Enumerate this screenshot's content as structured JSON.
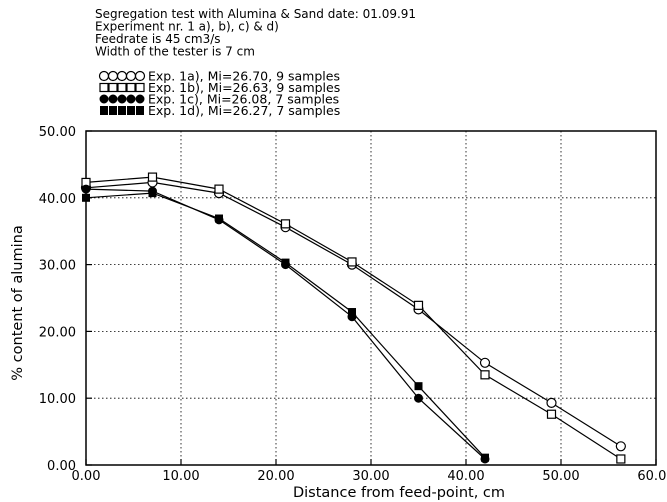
{
  "chart_data": {
    "type": "line",
    "title_lines": [
      "Segregation test with Alumina & Sand date: 01.09.91",
      "Experiment nr. 1 a), b), c) & d)",
      "Feedrate is 45 cm3/s",
      "Width of the tester is 7 cm"
    ],
    "xlabel": "Distance from feed-point, cm",
    "ylabel": "% content of alumina",
    "xlim": [
      0,
      60
    ],
    "ylim": [
      0,
      50
    ],
    "x_ticks": [
      0,
      10,
      20,
      30,
      40,
      50,
      60
    ],
    "y_ticks": [
      0,
      10,
      20,
      30,
      40,
      50
    ],
    "x_tick_labels": [
      "0.00",
      "10.00",
      "20.00",
      "30.00",
      "40.00",
      "50.00",
      "60.00"
    ],
    "y_tick_labels": [
      "0.00",
      "10.00",
      "20.00",
      "30.00",
      "40.00",
      "50.00"
    ],
    "grid": true,
    "legend_placement": "top-left above plot",
    "series": [
      {
        "name": "Exp. 1a), Mi=26.70, 9 samples",
        "marker": "open-circle",
        "x": [
          0,
          7,
          14,
          21,
          28,
          35,
          42,
          49,
          56.3
        ],
        "y": [
          41.5,
          42.3,
          40.7,
          35.6,
          30.0,
          23.3,
          15.3,
          9.3,
          2.8
        ]
      },
      {
        "name": "Exp. 1b), Mi=26.63, 9 samples",
        "marker": "open-square",
        "x": [
          0,
          7,
          14,
          21,
          28,
          35,
          42,
          49,
          56.3
        ],
        "y": [
          42.3,
          43.1,
          41.3,
          36.1,
          30.4,
          23.9,
          13.5,
          7.6,
          0.9
        ]
      },
      {
        "name": "Exp. 1c), Mi=26.08, 7 samples",
        "marker": "filled-circle",
        "x": [
          0,
          7,
          14,
          21,
          28,
          35,
          42
        ],
        "y": [
          41.3,
          41.0,
          36.7,
          30.0,
          22.2,
          10.0,
          0.9
        ]
      },
      {
        "name": "Exp. 1d), Mi=26.27, 7 samples",
        "marker": "filled-square",
        "x": [
          0,
          7,
          14,
          21,
          28,
          35,
          42
        ],
        "y": [
          40.0,
          40.7,
          36.9,
          30.3,
          22.9,
          11.8,
          1.1
        ]
      }
    ]
  }
}
